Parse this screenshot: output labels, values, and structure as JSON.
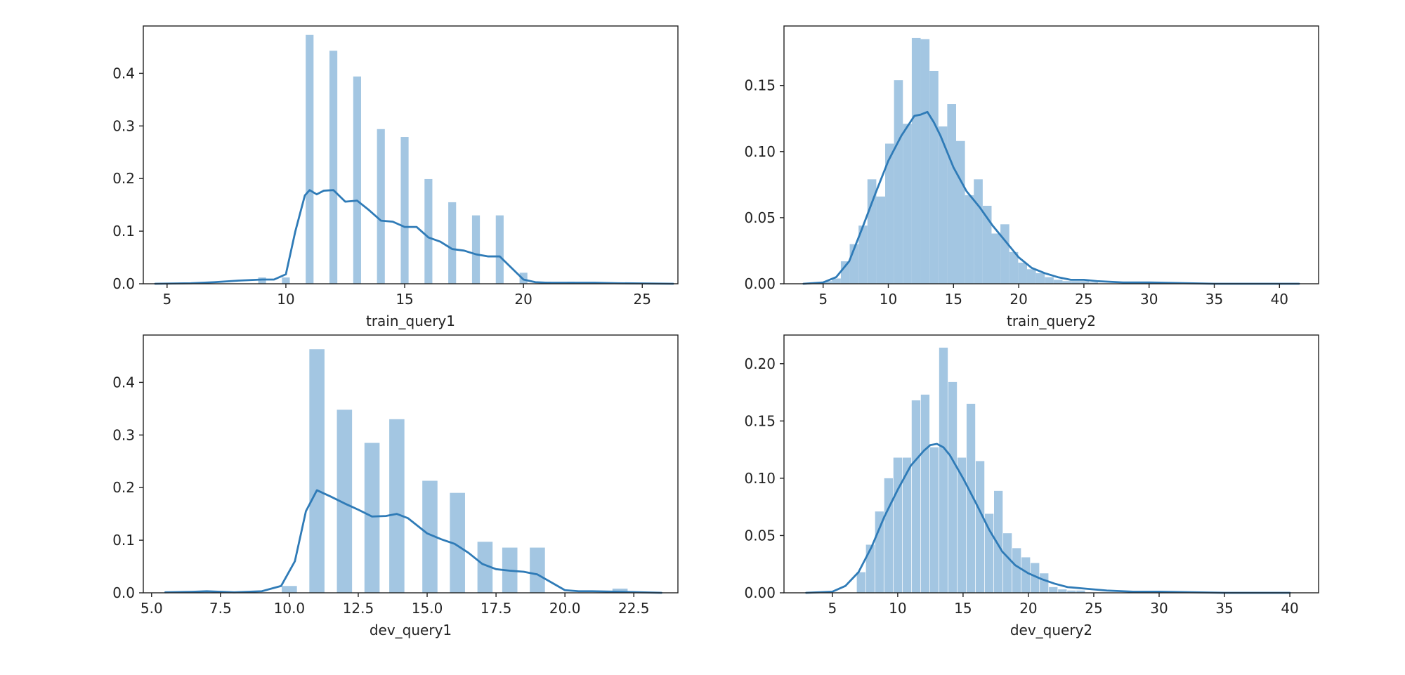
{
  "theme": {
    "hist_color": "#a3c6e2",
    "kde_color": "#2f7bb7",
    "axes_color": "#222222"
  },
  "chart_data": [
    {
      "type": "bar",
      "subtype": "histogram-with-kde",
      "xlabel": "train_query1",
      "ylabel": "",
      "title": "",
      "xlim": [
        4.0,
        26.5
      ],
      "ylim": [
        0,
        0.49
      ],
      "xticks": [
        5,
        10,
        15,
        20,
        25
      ],
      "xtick_labels": [
        "5",
        "10",
        "15",
        "20",
        "25"
      ],
      "yticks": [
        0.0,
        0.1,
        0.2,
        0.3,
        0.4
      ],
      "ytick_labels": [
        "0.0",
        "0.1",
        "0.2",
        "0.3",
        "0.4"
      ],
      "bin_width": 0.33,
      "bins": [
        {
          "x": 9,
          "value": 0.012
        },
        {
          "x": 10,
          "value": 0.012
        },
        {
          "x": 11,
          "value": 0.473
        },
        {
          "x": 12,
          "value": 0.443
        },
        {
          "x": 13,
          "value": 0.394
        },
        {
          "x": 14,
          "value": 0.294
        },
        {
          "x": 15,
          "value": 0.279
        },
        {
          "x": 16,
          "value": 0.199
        },
        {
          "x": 17,
          "value": 0.155
        },
        {
          "x": 18,
          "value": 0.13
        },
        {
          "x": 19,
          "value": 0.13
        },
        {
          "x": 20,
          "value": 0.021
        },
        {
          "x": 21,
          "value": 0.004
        },
        {
          "x": 22,
          "value": 0.004
        },
        {
          "x": 23,
          "value": 0.003
        }
      ],
      "kde": {
        "x": [
          4.5,
          6,
          7,
          8,
          9,
          9.5,
          10,
          10.4,
          10.8,
          11,
          11.3,
          11.6,
          12,
          12.5,
          13,
          13.5,
          14,
          14.5,
          15,
          15.5,
          16,
          16.5,
          17,
          17.5,
          18,
          18.5,
          19,
          19.5,
          20,
          20.5,
          21,
          22,
          23,
          24,
          26.3
        ],
        "y": [
          0.0,
          0.001,
          0.003,
          0.006,
          0.008,
          0.008,
          0.018,
          0.1,
          0.168,
          0.178,
          0.17,
          0.177,
          0.178,
          0.156,
          0.158,
          0.14,
          0.12,
          0.118,
          0.108,
          0.108,
          0.088,
          0.08,
          0.066,
          0.063,
          0.056,
          0.052,
          0.052,
          0.03,
          0.008,
          0.003,
          0.002,
          0.002,
          0.002,
          0.001,
          0.0
        ]
      }
    },
    {
      "type": "bar",
      "subtype": "histogram-with-kde",
      "xlabel": "train_query2",
      "ylabel": "",
      "title": "",
      "xlim": [
        2.0,
        43.0
      ],
      "ylim": [
        0,
        0.195
      ],
      "xticks": [
        5,
        10,
        15,
        20,
        25,
        30,
        35,
        40
      ],
      "xtick_labels": [
        "5",
        "10",
        "15",
        "20",
        "25",
        "30",
        "35",
        "40"
      ],
      "yticks": [
        0.0,
        0.05,
        0.1,
        0.15
      ],
      "ytick_labels": [
        "0.00",
        "0.05",
        "0.10",
        "0.15"
      ],
      "bin_width": 0.68,
      "bins": [
        {
          "x": 5.34,
          "value": 0.002
        },
        {
          "x": 6.02,
          "value": 0.004
        },
        {
          "x": 6.7,
          "value": 0.017
        },
        {
          "x": 7.38,
          "value": 0.03
        },
        {
          "x": 8.06,
          "value": 0.044
        },
        {
          "x": 8.74,
          "value": 0.079
        },
        {
          "x": 9.42,
          "value": 0.066
        },
        {
          "x": 10.1,
          "value": 0.106
        },
        {
          "x": 10.78,
          "value": 0.154
        },
        {
          "x": 11.46,
          "value": 0.121
        },
        {
          "x": 12.14,
          "value": 0.186
        },
        {
          "x": 12.82,
          "value": 0.185
        },
        {
          "x": 13.5,
          "value": 0.161
        },
        {
          "x": 14.18,
          "value": 0.119
        },
        {
          "x": 14.86,
          "value": 0.136
        },
        {
          "x": 15.54,
          "value": 0.108
        },
        {
          "x": 16.22,
          "value": 0.067
        },
        {
          "x": 16.9,
          "value": 0.079
        },
        {
          "x": 17.58,
          "value": 0.059
        },
        {
          "x": 18.26,
          "value": 0.038
        },
        {
          "x": 18.94,
          "value": 0.045
        },
        {
          "x": 19.62,
          "value": 0.024
        },
        {
          "x": 20.3,
          "value": 0.016
        },
        {
          "x": 20.98,
          "value": 0.011
        },
        {
          "x": 21.66,
          "value": 0.008
        },
        {
          "x": 22.34,
          "value": 0.005
        },
        {
          "x": 23.02,
          "value": 0.003
        },
        {
          "x": 23.7,
          "value": 0.002
        },
        {
          "x": 24.38,
          "value": 0.002
        },
        {
          "x": 25.06,
          "value": 0.002
        },
        {
          "x": 25.74,
          "value": 0.001
        }
      ],
      "kde": {
        "x": [
          3.5,
          5,
          6,
          7,
          8,
          9,
          10,
          11,
          12,
          12.5,
          13,
          13.5,
          14,
          15,
          16,
          17,
          18,
          19,
          20,
          21,
          22,
          23,
          24,
          25,
          26,
          28,
          30,
          35,
          41.5
        ],
        "y": [
          0.0,
          0.001,
          0.005,
          0.017,
          0.042,
          0.068,
          0.093,
          0.112,
          0.127,
          0.128,
          0.13,
          0.122,
          0.112,
          0.088,
          0.07,
          0.058,
          0.044,
          0.032,
          0.02,
          0.012,
          0.008,
          0.005,
          0.003,
          0.003,
          0.002,
          0.001,
          0.001,
          0.0,
          0.0
        ]
      }
    },
    {
      "type": "bar",
      "subtype": "histogram-with-kde",
      "xlabel": "dev_query1",
      "ylabel": "",
      "title": "",
      "xlim": [
        4.7,
        24.1
      ],
      "ylim": [
        0,
        0.49
      ],
      "xticks": [
        5.0,
        7.5,
        10.0,
        12.5,
        15.0,
        17.5,
        20.0,
        22.5
      ],
      "xtick_labels": [
        "5.0",
        "7.5",
        "10.0",
        "12.5",
        "15.0",
        "17.5",
        "20.0",
        "22.5"
      ],
      "yticks": [
        0.0,
        0.1,
        0.2,
        0.3,
        0.4
      ],
      "ytick_labels": [
        "0.0",
        "0.1",
        "0.2",
        "0.3",
        "0.4"
      ],
      "bin_width": 0.55,
      "bins": [
        {
          "x": 7.0,
          "value": 0.002
        },
        {
          "x": 10.0,
          "value": 0.013
        },
        {
          "x": 11.0,
          "value": 0.463
        },
        {
          "x": 12.0,
          "value": 0.348
        },
        {
          "x": 13.0,
          "value": 0.285
        },
        {
          "x": 13.9,
          "value": 0.33
        },
        {
          "x": 15.1,
          "value": 0.213
        },
        {
          "x": 16.1,
          "value": 0.19
        },
        {
          "x": 17.1,
          "value": 0.097
        },
        {
          "x": 18.0,
          "value": 0.086
        },
        {
          "x": 19.0,
          "value": 0.086
        },
        {
          "x": 22.0,
          "value": 0.008
        }
      ],
      "kde": {
        "x": [
          5.5,
          6.5,
          7,
          7.5,
          8,
          9,
          9.7,
          10.2,
          10.6,
          11,
          11.5,
          12,
          12.5,
          13,
          13.5,
          13.9,
          14.3,
          15,
          15.5,
          16,
          16.5,
          17,
          17.5,
          18,
          18.5,
          19,
          19.5,
          20,
          20.5,
          21,
          22,
          23.5
        ],
        "y": [
          0.001,
          0.002,
          0.003,
          0.002,
          0.001,
          0.003,
          0.013,
          0.06,
          0.155,
          0.195,
          0.183,
          0.17,
          0.158,
          0.145,
          0.146,
          0.15,
          0.142,
          0.113,
          0.102,
          0.093,
          0.076,
          0.055,
          0.045,
          0.042,
          0.04,
          0.035,
          0.02,
          0.005,
          0.003,
          0.003,
          0.002,
          0.0
        ]
      }
    },
    {
      "type": "bar",
      "subtype": "histogram-with-kde",
      "xlabel": "dev_query2",
      "ylabel": "",
      "title": "",
      "xlim": [
        1.3,
        42.2
      ],
      "ylim": [
        0,
        0.225
      ],
      "xticks": [
        5,
        10,
        15,
        20,
        25,
        30,
        35,
        40
      ],
      "xtick_labels": [
        "5",
        "10",
        "15",
        "20",
        "25",
        "30",
        "35",
        "40"
      ],
      "yticks": [
        0.0,
        0.05,
        0.1,
        0.15,
        0.2
      ],
      "ytick_labels": [
        "0.00",
        "0.05",
        "0.10",
        "0.15",
        "0.20"
      ],
      "bin_width": 0.66,
      "bins": [
        {
          "x": 7.2,
          "value": 0.018
        },
        {
          "x": 7.9,
          "value": 0.042
        },
        {
          "x": 8.6,
          "value": 0.071
        },
        {
          "x": 9.3,
          "value": 0.1
        },
        {
          "x": 10.0,
          "value": 0.118
        },
        {
          "x": 10.7,
          "value": 0.118
        },
        {
          "x": 11.4,
          "value": 0.168
        },
        {
          "x": 12.1,
          "value": 0.173
        },
        {
          "x": 12.8,
          "value": 0.127
        },
        {
          "x": 13.5,
          "value": 0.214
        },
        {
          "x": 14.2,
          "value": 0.184
        },
        {
          "x": 14.9,
          "value": 0.118
        },
        {
          "x": 15.6,
          "value": 0.165
        },
        {
          "x": 16.3,
          "value": 0.115
        },
        {
          "x": 17.0,
          "value": 0.069
        },
        {
          "x": 17.7,
          "value": 0.089
        },
        {
          "x": 18.4,
          "value": 0.052
        },
        {
          "x": 19.1,
          "value": 0.039
        },
        {
          "x": 19.8,
          "value": 0.031
        },
        {
          "x": 20.5,
          "value": 0.026
        },
        {
          "x": 21.2,
          "value": 0.017
        },
        {
          "x": 21.9,
          "value": 0.005
        },
        {
          "x": 22.6,
          "value": 0.003
        },
        {
          "x": 23.3,
          "value": 0.002
        },
        {
          "x": 24.0,
          "value": 0.002
        }
      ],
      "kde": {
        "x": [
          3,
          5,
          6,
          7,
          8,
          9,
          10,
          11,
          12,
          12.5,
          13,
          13.5,
          14,
          15,
          16,
          17,
          18,
          19,
          20,
          21,
          22,
          23,
          24,
          25,
          26,
          28,
          30,
          35,
          40
        ],
        "y": [
          0.0,
          0.001,
          0.006,
          0.018,
          0.04,
          0.067,
          0.09,
          0.111,
          0.124,
          0.129,
          0.13,
          0.127,
          0.12,
          0.1,
          0.078,
          0.055,
          0.036,
          0.024,
          0.017,
          0.012,
          0.008,
          0.005,
          0.004,
          0.003,
          0.002,
          0.001,
          0.001,
          0.0,
          0.0
        ]
      }
    }
  ]
}
